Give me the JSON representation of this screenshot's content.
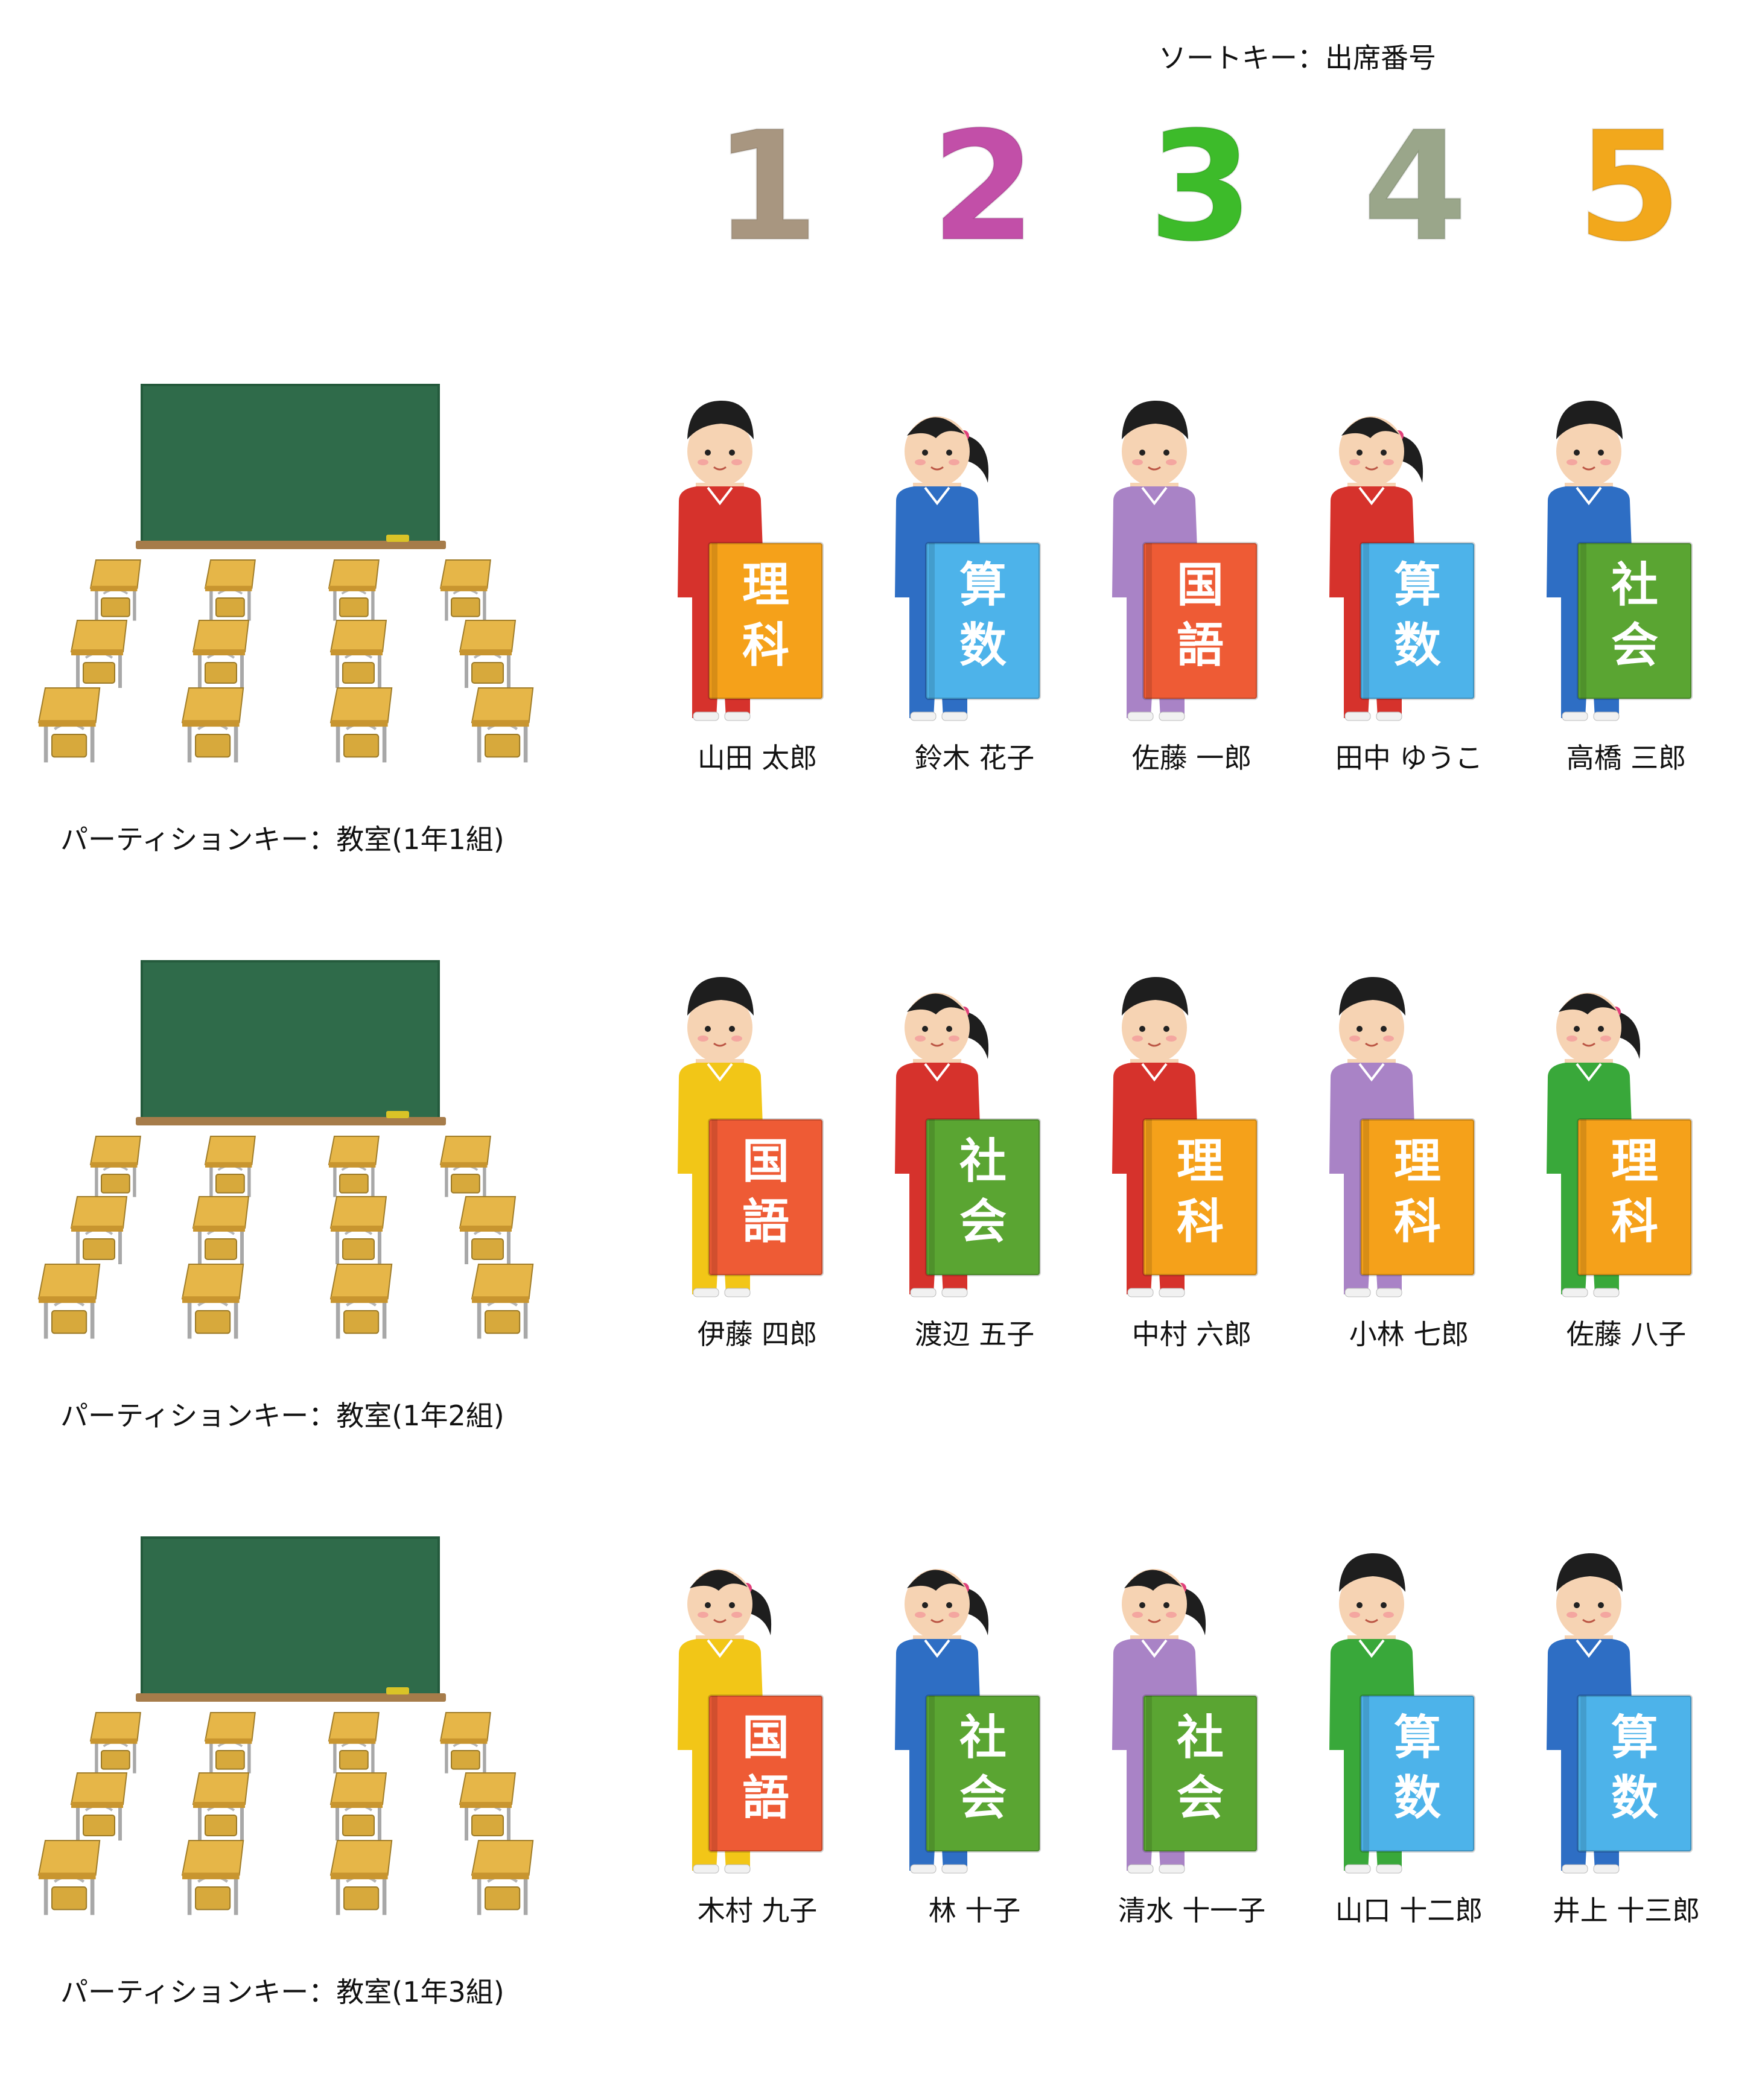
{
  "sort_key_label": "ソートキー：出席番号",
  "digits": [
    {
      "text": "1",
      "color": "#a89680"
    },
    {
      "text": "2",
      "color": "#c24fa8"
    },
    {
      "text": "3",
      "color": "#3dbb2a"
    },
    {
      "text": "4",
      "color": "#9aa68a"
    },
    {
      "text": "5",
      "color": "#f2a81c"
    }
  ],
  "partitions": [
    {
      "label": "パーティションキー：教室(1年1組)",
      "students": [
        {
          "name": "山田 太郎",
          "gender": "boy",
          "jersey": "#d6322c",
          "book_color": "#f5a11a",
          "book": [
            "理",
            "科"
          ]
        },
        {
          "name": "鈴木 花子",
          "gender": "girl",
          "jersey": "#2e6ec4",
          "book_color": "#4db3ea",
          "book": [
            "算",
            "数"
          ]
        },
        {
          "name": "佐藤 一郎",
          "gender": "boy",
          "jersey": "#a983c6",
          "book_color": "#ee5b35",
          "book": [
            "国",
            "語"
          ]
        },
        {
          "name": "田中 ゆうこ",
          "gender": "girl",
          "jersey": "#d6322c",
          "book_color": "#4db3ea",
          "book": [
            "算",
            "数"
          ]
        },
        {
          "name": "高橋 三郎",
          "gender": "boy",
          "jersey": "#2e6ec4",
          "book_color": "#5aa532",
          "book": [
            "社",
            "会"
          ]
        }
      ]
    },
    {
      "label": "パーティションキー：教室(1年2組)",
      "students": [
        {
          "name": "伊藤 四郎",
          "gender": "boy",
          "jersey": "#f2c617",
          "book_color": "#ee5b35",
          "book": [
            "国",
            "語"
          ]
        },
        {
          "name": "渡辺 五子",
          "gender": "girl",
          "jersey": "#d6322c",
          "book_color": "#5aa532",
          "book": [
            "社",
            "会"
          ]
        },
        {
          "name": "中村 六郎",
          "gender": "boy",
          "jersey": "#d6322c",
          "book_color": "#f5a11a",
          "book": [
            "理",
            "科"
          ]
        },
        {
          "name": "小林 七郎",
          "gender": "boy",
          "jersey": "#a983c6",
          "book_color": "#f5a11a",
          "book": [
            "理",
            "科"
          ]
        },
        {
          "name": "佐藤 八子",
          "gender": "girl",
          "jersey": "#39a83a",
          "book_color": "#f5a11a",
          "book": [
            "理",
            "科"
          ]
        }
      ]
    },
    {
      "label": "パーティションキー：教室(1年3組)",
      "students": [
        {
          "name": "木村 九子",
          "gender": "girl",
          "jersey": "#f2c617",
          "book_color": "#ee5b35",
          "book": [
            "国",
            "語"
          ]
        },
        {
          "name": "林 十子",
          "gender": "girl",
          "jersey": "#2e6ec4",
          "book_color": "#5aa532",
          "book": [
            "社",
            "会"
          ]
        },
        {
          "name": "清水 十一子",
          "gender": "girl",
          "jersey": "#a983c6",
          "book_color": "#5aa532",
          "book": [
            "社",
            "会"
          ]
        },
        {
          "name": "山口 十二郎",
          "gender": "boy",
          "jersey": "#39a83a",
          "book_color": "#4db3ea",
          "book": [
            "算",
            "数"
          ]
        },
        {
          "name": "井上 十三郎",
          "gender": "boy",
          "jersey": "#2e6ec4",
          "book_color": "#4db3ea",
          "book": [
            "算",
            "数"
          ]
        }
      ]
    }
  ]
}
